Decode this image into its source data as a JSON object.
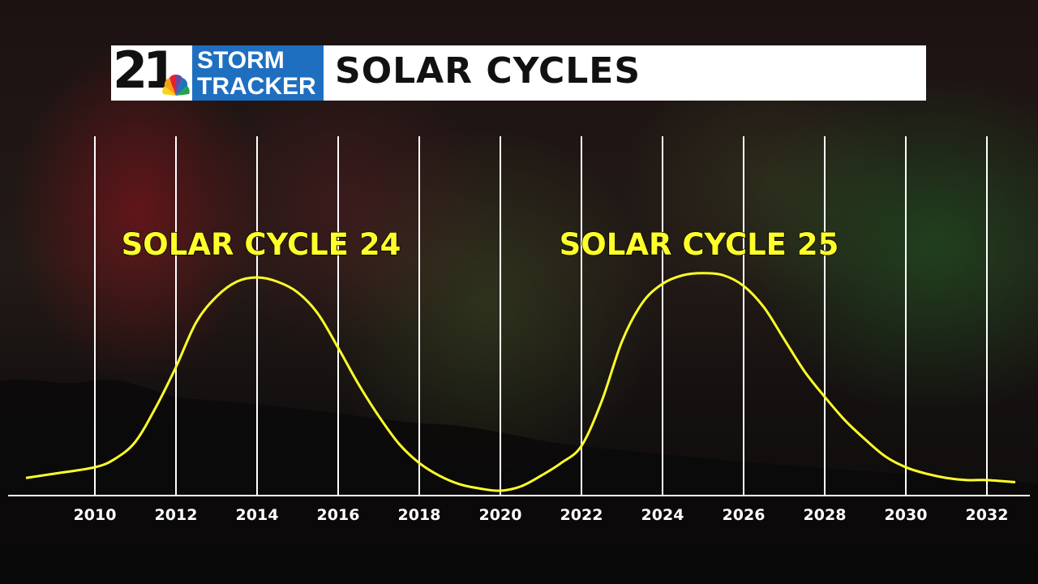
{
  "header": {
    "logo": {
      "number": "21",
      "line1": "STORM",
      "line2": "TRACKER"
    },
    "title": "SOLAR CYCLES"
  },
  "colors": {
    "curve": "#ffff2a",
    "gridline": "#ffffff",
    "logo_blue": "#1f6fc0"
  },
  "chart_data": {
    "type": "line",
    "title": "",
    "xlabel": "",
    "ylabel": "",
    "xlim": [
      2008.3,
      2033.5
    ],
    "ylim": [
      0,
      1
    ],
    "grid": {
      "vertical": true,
      "horizontal": false
    },
    "x_ticks": [
      2010,
      2012,
      2014,
      2016,
      2018,
      2020,
      2022,
      2024,
      2026,
      2028,
      2030,
      2032
    ],
    "series": [
      {
        "name": "",
        "x": [
          2008.3,
          2009,
          2010,
          2010.5,
          2011,
          2011.5,
          2012,
          2012.5,
          2013,
          2013.5,
          2014,
          2014.5,
          2015,
          2015.5,
          2016,
          2016.5,
          2017,
          2017.5,
          2018,
          2018.5,
          2019,
          2019.5,
          2020,
          2020.5,
          2021,
          2021.5,
          2022,
          2022.5,
          2023,
          2023.5,
          2024,
          2024.5,
          2025,
          2025.5,
          2026,
          2026.5,
          2027,
          2027.5,
          2028,
          2028.5,
          2029,
          2029.5,
          2030,
          2030.5,
          2031,
          2031.5,
          2032,
          2032.7
        ],
        "y": [
          0.06,
          0.08,
          0.11,
          0.15,
          0.23,
          0.39,
          0.58,
          0.79,
          0.91,
          0.98,
          1.0,
          0.98,
          0.93,
          0.83,
          0.67,
          0.5,
          0.35,
          0.22,
          0.13,
          0.07,
          0.03,
          0.01,
          0.0,
          0.02,
          0.07,
          0.13,
          0.21,
          0.42,
          0.7,
          0.88,
          0.97,
          1.01,
          1.02,
          1.01,
          0.96,
          0.86,
          0.71,
          0.56,
          0.44,
          0.33,
          0.24,
          0.16,
          0.11,
          0.08,
          0.06,
          0.05,
          0.05,
          0.04
        ]
      }
    ],
    "annotations": [
      {
        "text": "SOLAR CYCLE 24",
        "x": 2014,
        "y": 1.5
      },
      {
        "text": "SOLAR CYCLE 25",
        "x": 2025,
        "y": 1.5
      }
    ]
  }
}
